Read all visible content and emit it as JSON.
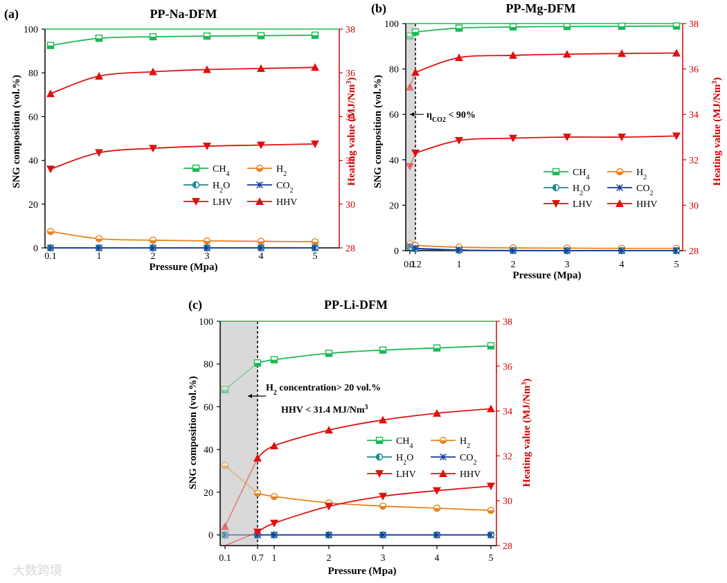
{
  "colors": {
    "CH4": "#1db954",
    "H2": "#e8821e",
    "H2O": "#1a8a8a",
    "CO2": "#1a3a9e",
    "LHV": "#e01010",
    "HHV": "#e01010",
    "right_axis": "#d00000",
    "shade": "#d9d9d9"
  },
  "watermark": "大数跨境",
  "chart_data": [
    {
      "label": "(a)",
      "type": "line",
      "title": "PP-Na-DFM",
      "xlabel": "Pressure (Mpa)",
      "ylabel": "SNG composition (vol.%)",
      "y2label": "Heating value (MJ/Nm3)",
      "ylim": [
        0,
        100
      ],
      "y2lim": [
        28,
        38
      ],
      "yticks": [
        "0",
        "20",
        "40",
        "60",
        "80",
        "100"
      ],
      "y2ticks": [
        "28",
        "30",
        "32",
        "34",
        "36",
        "38"
      ],
      "xticks": [
        "0.1",
        "1",
        "2",
        "3",
        "4",
        "5"
      ],
      "x": [
        0.1,
        1,
        2,
        3,
        4,
        5
      ],
      "series": [
        {
          "name": "CH4",
          "axis": "left",
          "values": [
            92.5,
            95.8,
            96.5,
            96.8,
            97.0,
            97.2
          ]
        },
        {
          "name": "H2",
          "axis": "left",
          "values": [
            7.5,
            4.2,
            3.5,
            3.2,
            3.0,
            2.8
          ]
        },
        {
          "name": "H2O",
          "axis": "left",
          "values": [
            0,
            0,
            0,
            0,
            0,
            0
          ]
        },
        {
          "name": "CO2",
          "axis": "left",
          "values": [
            0,
            0,
            0,
            0,
            0,
            0
          ]
        },
        {
          "name": "LHV",
          "axis": "right",
          "values": [
            31.6,
            32.35,
            32.55,
            32.65,
            32.7,
            32.75
          ]
        },
        {
          "name": "HHV",
          "axis": "right",
          "values": [
            35.05,
            35.85,
            36.05,
            36.15,
            36.2,
            36.25
          ]
        }
      ]
    },
    {
      "label": "(b)",
      "type": "line",
      "title": "PP-Mg-DFM",
      "xlabel": "Pressure (Mpa)",
      "ylabel": "SNG composition (vol.%)",
      "y2label": "Heating value (MJ/Nm3)",
      "ylim": [
        0,
        100
      ],
      "y2lim": [
        28,
        38
      ],
      "yticks": [
        "0",
        "20",
        "40",
        "60",
        "80",
        "100"
      ],
      "y2ticks": [
        "28",
        "30",
        "32",
        "34",
        "36",
        "38"
      ],
      "xticks": [
        "0.1",
        "0.2",
        "1",
        "2",
        "3",
        "4",
        "5"
      ],
      "shade_to": 0.2,
      "annotation": "ηCO2 < 90%",
      "x": [
        0.1,
        0.2,
        1,
        2,
        3,
        4,
        5
      ],
      "series": [
        {
          "name": "CH4",
          "axis": "left",
          "values": [
            94.5,
            96.3,
            98.0,
            98.5,
            98.7,
            98.8,
            98.9
          ]
        },
        {
          "name": "H2",
          "axis": "left",
          "values": [
            3.0,
            2.3,
            1.5,
            1.2,
            1.1,
            1.0,
            1.0
          ]
        },
        {
          "name": "H2O",
          "axis": "left",
          "values": [
            1.5,
            0.8,
            0.2,
            0.1,
            0,
            0,
            0
          ]
        },
        {
          "name": "CO2",
          "axis": "left",
          "values": [
            2.0,
            1.0,
            0.3,
            0,
            0,
            0,
            0
          ]
        },
        {
          "name": "LHV",
          "axis": "right",
          "values": [
            31.7,
            32.3,
            32.85,
            32.95,
            33.0,
            33.0,
            33.05
          ]
        },
        {
          "name": "HHV",
          "axis": "right",
          "values": [
            35.2,
            35.85,
            36.5,
            36.6,
            36.65,
            36.68,
            36.7
          ]
        }
      ]
    },
    {
      "label": "(c)",
      "type": "line",
      "title": "PP-Li-DFM",
      "xlabel": "Pressure (Mpa)",
      "ylabel": "SNG composition (vol.%)",
      "y2label": "Heating value (MJ/Nm3)",
      "ylim": [
        -5,
        100
      ],
      "y2lim": [
        28,
        38
      ],
      "yticks": [
        "0",
        "20",
        "40",
        "60",
        "80",
        "100"
      ],
      "y2ticks": [
        "28",
        "30",
        "32",
        "34",
        "36",
        "38"
      ],
      "xticks": [
        "0.1",
        "0.7",
        "1",
        "2",
        "3",
        "4",
        "5"
      ],
      "shade_to": 0.7,
      "annotation_line1": "H2 concentration> 20 vol.%",
      "annotation_line2": "HHV < 31.4 MJ/Nm3",
      "x": [
        0.1,
        0.7,
        1,
        2,
        3,
        4,
        5
      ],
      "series": [
        {
          "name": "CH4",
          "axis": "left",
          "values": [
            68,
            80.5,
            82,
            85,
            86.5,
            87.5,
            88.5
          ]
        },
        {
          "name": "H2",
          "axis": "left",
          "values": [
            32.5,
            19.5,
            18,
            15,
            13.5,
            12.5,
            11.5
          ]
        },
        {
          "name": "H2O",
          "axis": "left",
          "values": [
            0,
            0,
            0,
            0,
            0,
            0,
            0
          ]
        },
        {
          "name": "CO2",
          "axis": "left",
          "values": [
            0,
            0,
            0,
            0,
            0,
            0,
            0
          ]
        },
        {
          "name": "LHV",
          "axis": "right",
          "values": [
            27.5,
            28.6,
            29.0,
            29.75,
            30.2,
            30.45,
            30.65
          ]
        },
        {
          "name": "HHV",
          "axis": "right",
          "values": [
            28.85,
            31.9,
            32.45,
            33.15,
            33.6,
            33.9,
            34.1
          ]
        }
      ]
    }
  ]
}
